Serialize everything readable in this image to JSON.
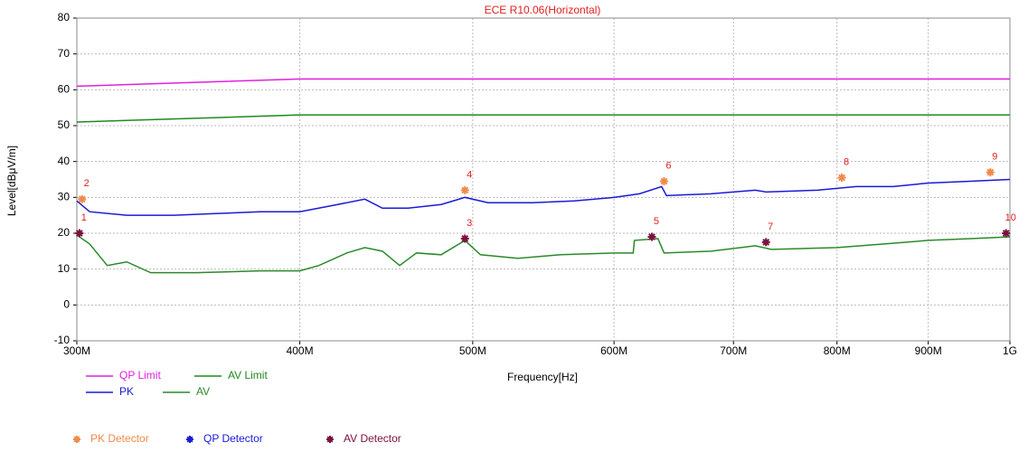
{
  "chart_data": {
    "type": "line",
    "title": "ECE R10.06(Horizontal)",
    "x_label": "Frequency[Hz]",
    "y_label": "Level[dBμV/m]",
    "xscale": "log",
    "xlim": [
      300,
      1000
    ],
    "xticks": [
      {
        "value": 300,
        "label": "300M"
      },
      {
        "value": 400,
        "label": "400M"
      },
      {
        "value": 500,
        "label": "500M"
      },
      {
        "value": 600,
        "label": "600M"
      },
      {
        "value": 700,
        "label": "700M"
      },
      {
        "value": 800,
        "label": "800M"
      },
      {
        "value": 900,
        "label": "900M"
      },
      {
        "value": 1000,
        "label": "1G"
      }
    ],
    "ylim": [
      -10,
      80
    ],
    "yticks": [
      -10,
      0,
      10,
      20,
      30,
      40,
      50,
      60,
      70,
      80
    ],
    "grid": true,
    "series": [
      {
        "name": "QP Limit",
        "color": "#e020e0",
        "kind": "line",
        "x": [
          300,
          400,
          1000
        ],
        "values": [
          61,
          63,
          63
        ]
      },
      {
        "name": "AV Limit",
        "color": "#1e8a1e",
        "kind": "line",
        "x": [
          300,
          400,
          1000
        ],
        "values": [
          51,
          53,
          53
        ]
      },
      {
        "name": "PK",
        "color": "#1a1ad6",
        "kind": "line",
        "x": [
          300,
          305,
          320,
          340,
          360,
          380,
          400,
          420,
          435,
          445,
          460,
          480,
          495,
          510,
          540,
          570,
          600,
          620,
          638,
          642,
          680,
          720,
          730,
          780,
          820,
          860,
          900,
          950,
          1000
        ],
        "values": [
          29,
          26,
          25,
          25,
          25.5,
          26,
          26,
          28,
          29.5,
          27,
          27,
          28,
          30,
          28.5,
          28.5,
          29,
          30,
          31,
          33,
          30.5,
          31,
          32,
          31.5,
          32,
          33,
          33,
          34,
          34.5,
          35
        ]
      },
      {
        "name": "AV",
        "color": "#2a8a2a",
        "kind": "line",
        "x": [
          300,
          305,
          312,
          320,
          330,
          350,
          380,
          400,
          410,
          425,
          435,
          445,
          455,
          465,
          480,
          495,
          505,
          530,
          560,
          600,
          615,
          616,
          635,
          640,
          680,
          720,
          735,
          800,
          850,
          900,
          950,
          1000
        ],
        "values": [
          19.5,
          17,
          11,
          12,
          9,
          9,
          9.5,
          9.5,
          11,
          14.5,
          16,
          15,
          11,
          14.5,
          14,
          18,
          14,
          13,
          14,
          14.5,
          14.5,
          18,
          18.5,
          14.5,
          15,
          16.5,
          15.5,
          16,
          17,
          18,
          18.5,
          19
        ]
      },
      {
        "name": "PK Detector",
        "color": "#f08a4a",
        "kind": "marker",
        "x": [
          302,
          495,
          640,
          805,
          975
        ],
        "values": [
          29.5,
          32,
          34.5,
          35.5,
          37
        ],
        "point_labels": [
          "2",
          "4",
          "6",
          "8",
          "9"
        ]
      },
      {
        "name": "QP Detector",
        "color": "#1a1ad6",
        "kind": "marker",
        "x": [],
        "values": [],
        "point_labels": []
      },
      {
        "name": "AV Detector",
        "color": "#7a1040",
        "kind": "marker",
        "x": [
          301,
          495,
          630,
          730,
          995
        ],
        "values": [
          20,
          18.5,
          19,
          17.5,
          20
        ],
        "point_labels": [
          "1",
          "3",
          "5",
          "7",
          "10"
        ]
      }
    ]
  }
}
